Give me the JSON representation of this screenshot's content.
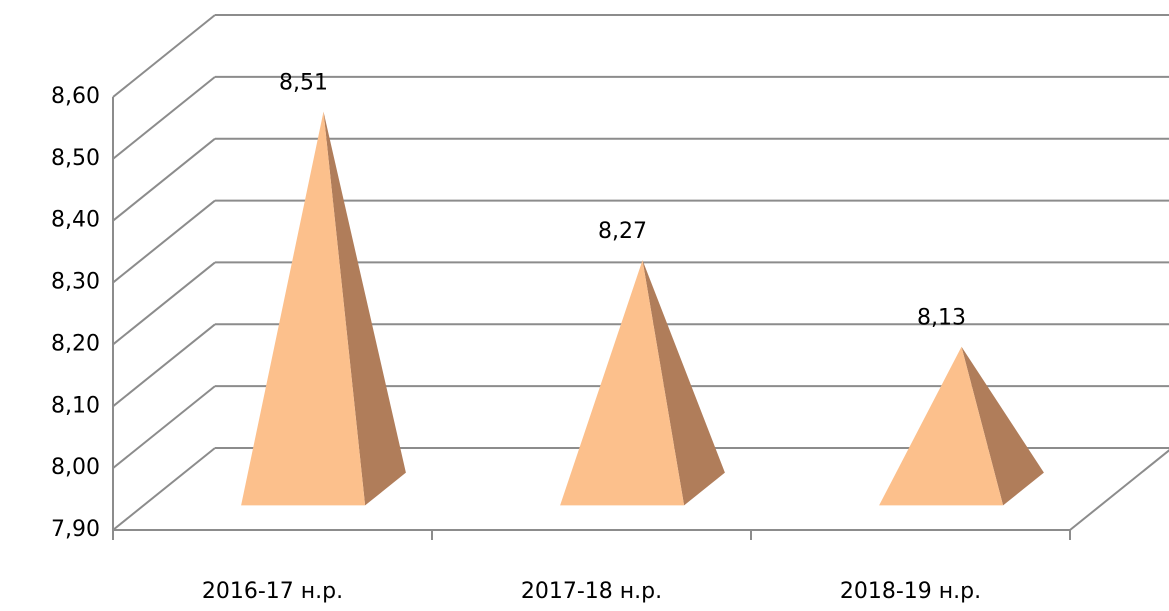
{
  "chart_data": {
    "type": "pyramid",
    "categories": [
      "2016-17 н.р.",
      "2017-18 н.р.",
      "2018-19 н.р."
    ],
    "values": [
      8.51,
      8.27,
      8.13
    ],
    "value_labels": [
      "8,51",
      "8,27",
      "8,13"
    ],
    "color": "#fcc08c",
    "ylim": [
      7.9,
      8.6
    ],
    "yticks": [
      {
        "value": 7.9,
        "label": "7,90"
      },
      {
        "value": 8.0,
        "label": "8,00"
      },
      {
        "value": 8.1,
        "label": "8,10"
      },
      {
        "value": 8.2,
        "label": "8,20"
      },
      {
        "value": 8.3,
        "label": "8,30"
      },
      {
        "value": 8.4,
        "label": "8,40"
      },
      {
        "value": 8.5,
        "label": "8,50"
      },
      {
        "value": 8.6,
        "label": "8,60"
      }
    ],
    "grid": true
  }
}
